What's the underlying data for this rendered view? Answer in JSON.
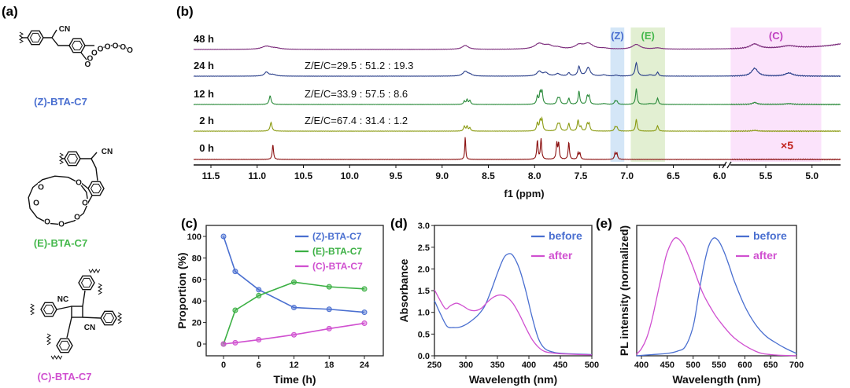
{
  "panels": {
    "a": "(a)",
    "b": "(b)",
    "c": "(c)",
    "d": "(d)",
    "e": "(e)"
  },
  "molecules": [
    {
      "label": "(Z)-BTA-C7",
      "iso": "Z",
      "color": "#4a6fd0",
      "atoms": {
        "cn": "CN",
        "o": "O"
      }
    },
    {
      "label": "(E)-BTA-C7",
      "iso": "E",
      "color": "#45b84c",
      "atoms": {
        "cn": "CN",
        "o": "O"
      }
    },
    {
      "label": "(C)-BTA-C7",
      "iso": "C",
      "color": "#d050d0",
      "atoms": {
        "nc": "NC",
        "cn": "CN"
      }
    }
  ],
  "chart_data": [
    {
      "type": "line",
      "panel": "b",
      "xlabel": "f1 (ppm)",
      "xlim": [
        11.7,
        4.7
      ],
      "x_reversed": true,
      "axis_break": [
        6.0,
        5.9
      ],
      "xticks": [
        "11.5",
        "11.0",
        "10.5",
        "10.0",
        "9.5",
        "9.0",
        "8.5",
        "8.0",
        "7.5",
        "7.0",
        "6.5",
        "6.0",
        "5.5",
        "5.0"
      ],
      "highlights": [
        {
          "label": "(Z)",
          "range": [
            7.18,
            7.03
          ],
          "color": "#d4e6f7",
          "text_color": "#4a6fd0"
        },
        {
          "label": "(E)",
          "range": [
            6.96,
            6.59
          ],
          "color": "#e2efd2",
          "text_color": "#45b84c"
        },
        {
          "label": "(C)",
          "range": [
            5.88,
            4.9
          ],
          "color": "#fbe3fb",
          "text_color": "#c040c0"
        }
      ],
      "annotation_scale": "×5",
      "annotation_scale_color": "#c0201a",
      "series": [
        {
          "name": "48 h",
          "color": "#7a2a7a",
          "ratio": "",
          "peaks": [
            [
              10.9,
              4,
              0.06
            ],
            [
              10.8,
              1.5,
              0.06
            ],
            [
              8.75,
              5,
              0.04
            ],
            [
              7.95,
              7,
              0.06
            ],
            [
              7.85,
              4,
              0.05
            ],
            [
              7.75,
              2,
              0.05
            ],
            [
              7.52,
              5,
              0.05
            ],
            [
              7.42,
              7,
              0.06
            ],
            [
              7.25,
              1,
              0.05
            ],
            [
              6.9,
              6,
              0.05
            ],
            [
              6.67,
              1.5,
              0.05
            ],
            [
              5.62,
              6,
              0.06
            ],
            [
              5.25,
              3,
              0.1
            ],
            [
              4.4,
              12,
              0.35
            ]
          ]
        },
        {
          "name": "24 h",
          "color": "#2a3f8a",
          "ratio": "Z/E/C=29.5 : 51.2 : 19.3",
          "peaks": [
            [
              10.9,
              5,
              0.025
            ],
            [
              10.83,
              2,
              0.04
            ],
            [
              8.75,
              6,
              0.03
            ],
            [
              8.7,
              2,
              0.03
            ],
            [
              7.95,
              6,
              0.03
            ],
            [
              7.88,
              4,
              0.03
            ],
            [
              7.75,
              3,
              0.03
            ],
            [
              7.63,
              4,
              0.015
            ],
            [
              7.52,
              12,
              0.015
            ],
            [
              7.42,
              11,
              0.025
            ],
            [
              7.25,
              1.5,
              0.03
            ],
            [
              7.12,
              1.2,
              0.02
            ],
            [
              6.9,
              17,
              0.015
            ],
            [
              6.75,
              1.5,
              0.03
            ],
            [
              6.67,
              5,
              0.012
            ],
            [
              5.62,
              10,
              0.04
            ],
            [
              5.25,
              4,
              0.05
            ]
          ]
        },
        {
          "name": "12 h",
          "color": "#2a8a3a",
          "ratio": "Z/E/C=33.9 : 57.5 : 8.6",
          "peaks": [
            [
              10.86,
              11,
              0.012
            ],
            [
              8.76,
              4,
              0.01
            ],
            [
              8.73,
              6,
              0.01
            ],
            [
              8.7,
              5,
              0.01
            ],
            [
              7.97,
              10,
              0.01
            ],
            [
              7.94,
              14,
              0.01
            ],
            [
              7.92,
              16,
              0.01
            ],
            [
              7.75,
              7,
              0.012
            ],
            [
              7.73,
              7,
              0.012
            ],
            [
              7.63,
              8,
              0.01
            ],
            [
              7.52,
              17,
              0.01
            ],
            [
              7.43,
              10,
              0.01
            ],
            [
              7.41,
              10,
              0.01
            ],
            [
              7.25,
              1,
              0.03
            ],
            [
              7.13,
              4,
              0.01
            ],
            [
              7.11,
              4,
              0.01
            ],
            [
              6.9,
              20,
              0.01
            ],
            [
              6.75,
              1,
              0.03
            ],
            [
              6.67,
              8,
              0.01
            ],
            [
              5.62,
              2.5,
              0.03
            ],
            [
              5.25,
              1,
              0.05
            ]
          ]
        },
        {
          "name": "2 h",
          "color": "#8a9a10",
          "ratio": "Z/E/C=67.4 : 31.4 : 1.2",
          "peaks": [
            [
              10.85,
              11,
              0.012
            ],
            [
              8.76,
              6,
              0.01
            ],
            [
              8.73,
              6,
              0.01
            ],
            [
              8.7,
              4,
              0.01
            ],
            [
              7.97,
              10,
              0.01
            ],
            [
              7.94,
              12,
              0.01
            ],
            [
              7.92,
              14,
              0.01
            ],
            [
              7.75,
              8,
              0.012
            ],
            [
              7.73,
              8,
              0.012
            ],
            [
              7.63,
              10,
              0.01
            ],
            [
              7.53,
              14,
              0.01
            ],
            [
              7.5,
              5,
              0.01
            ],
            [
              7.43,
              9,
              0.01
            ],
            [
              7.41,
              9,
              0.01
            ],
            [
              7.13,
              5,
              0.01
            ],
            [
              7.11,
              5,
              0.01
            ],
            [
              6.9,
              15,
              0.01
            ],
            [
              6.67,
              7,
              0.01
            ],
            [
              5.62,
              1,
              0.03
            ]
          ]
        },
        {
          "name": "0 h",
          "color": "#8b1010",
          "ratio": "",
          "peaks": [
            [
              10.83,
              19,
              0.008
            ],
            [
              8.75,
              29,
              0.006
            ],
            [
              7.97,
              24,
              0.008
            ],
            [
              7.93,
              26,
              0.008
            ],
            [
              7.76,
              20,
              0.008
            ],
            [
              7.74,
              20,
              0.008
            ],
            [
              7.63,
              22,
              0.008
            ],
            [
              7.53,
              8,
              0.008
            ],
            [
              7.51,
              8,
              0.008
            ],
            [
              7.13,
              8,
              0.008
            ],
            [
              7.11,
              8,
              0.008
            ]
          ]
        }
      ]
    },
    {
      "type": "line",
      "panel": "c",
      "xlabel": "Time (h)",
      "ylabel": "Proportion (%)",
      "xlim": [
        -3,
        27
      ],
      "ylim": [
        -10,
        110
      ],
      "xticks": [
        0,
        6,
        12,
        18,
        24
      ],
      "yticks": [
        0,
        20,
        40,
        60,
        80,
        100
      ],
      "legend": "top-right",
      "x": [
        0,
        2,
        6,
        12,
        18,
        24
      ],
      "series": [
        {
          "name": "(Z)-BTA-C7",
          "color": "#4a6fd0",
          "values": [
            100,
            67.4,
            50.5,
            33.9,
            32.3,
            29.5
          ]
        },
        {
          "name": "(E)-BTA-C7",
          "color": "#3cb044",
          "values": [
            0,
            31.4,
            45,
            57.5,
            53.2,
            51.2
          ]
        },
        {
          "name": "(C)-BTA-C7",
          "color": "#d050d0",
          "values": [
            0,
            1.2,
            4.0,
            8.6,
            14.3,
            19.3
          ]
        }
      ]
    },
    {
      "type": "line",
      "panel": "d",
      "xlabel": "Wavelength (nm)",
      "ylabel": "Absorbance",
      "xlim": [
        250,
        500
      ],
      "ylim": [
        0,
        3.0
      ],
      "xticks": [
        250,
        300,
        350,
        400,
        450,
        500
      ],
      "yticks": [
        "0.0",
        "0.5",
        "1.0",
        "1.5",
        "2.0",
        "2.5",
        "3.0"
      ],
      "legend": "top-right",
      "series": [
        {
          "name": "before",
          "color": "#4a6fd0",
          "x": [
            250,
            260,
            270,
            280,
            290,
            300,
            310,
            320,
            330,
            340,
            350,
            360,
            368,
            375,
            385,
            395,
            405,
            415,
            425,
            440,
            460,
            500
          ],
          "values": [
            1.27,
            0.95,
            0.68,
            0.65,
            0.66,
            0.72,
            0.82,
            0.95,
            1.15,
            1.5,
            1.9,
            2.25,
            2.35,
            2.3,
            2.0,
            1.5,
            0.9,
            0.4,
            0.17,
            0.08,
            0.05,
            0.03
          ]
        },
        {
          "name": "after",
          "color": "#d050d0",
          "x": [
            250,
            260,
            268,
            275,
            285,
            295,
            305,
            315,
            325,
            335,
            345,
            355,
            365,
            375,
            385,
            395,
            405,
            415,
            425,
            440,
            460,
            500
          ],
          "values": [
            1.52,
            1.25,
            1.08,
            1.15,
            1.21,
            1.15,
            1.06,
            1.04,
            1.1,
            1.25,
            1.36,
            1.4,
            1.35,
            1.2,
            0.95,
            0.65,
            0.38,
            0.2,
            0.1,
            0.06,
            0.04,
            0.02
          ]
        }
      ]
    },
    {
      "type": "line",
      "panel": "e",
      "xlabel": "Wavelength (nm)",
      "ylabel": "PL intensity (normalized)",
      "xlim": [
        390,
        700
      ],
      "ylim": [
        0,
        1.1
      ],
      "xticks": [
        400,
        450,
        500,
        550,
        600,
        650,
        700
      ],
      "legend": "top-right",
      "series": [
        {
          "name": "before",
          "color": "#4a6fd0",
          "x": [
            390,
            420,
            450,
            470,
            485,
            500,
            510,
            520,
            530,
            540,
            550,
            560,
            570,
            580,
            600,
            620,
            640,
            660,
            680,
            700
          ],
          "values": [
            0,
            0.01,
            0.02,
            0.04,
            0.08,
            0.25,
            0.5,
            0.75,
            0.93,
            1.0,
            0.97,
            0.88,
            0.76,
            0.63,
            0.42,
            0.27,
            0.17,
            0.11,
            0.06,
            0.02
          ]
        },
        {
          "name": "after",
          "color": "#d050d0",
          "x": [
            390,
            400,
            410,
            420,
            430,
            440,
            450,
            465,
            480,
            490,
            500,
            510,
            520,
            535,
            550,
            580,
            620,
            650,
            700
          ],
          "values": [
            0.01,
            0.06,
            0.15,
            0.3,
            0.5,
            0.7,
            0.88,
            1.0,
            0.95,
            0.86,
            0.75,
            0.63,
            0.52,
            0.4,
            0.3,
            0.15,
            0.04,
            0.01,
            0
          ]
        }
      ]
    }
  ]
}
